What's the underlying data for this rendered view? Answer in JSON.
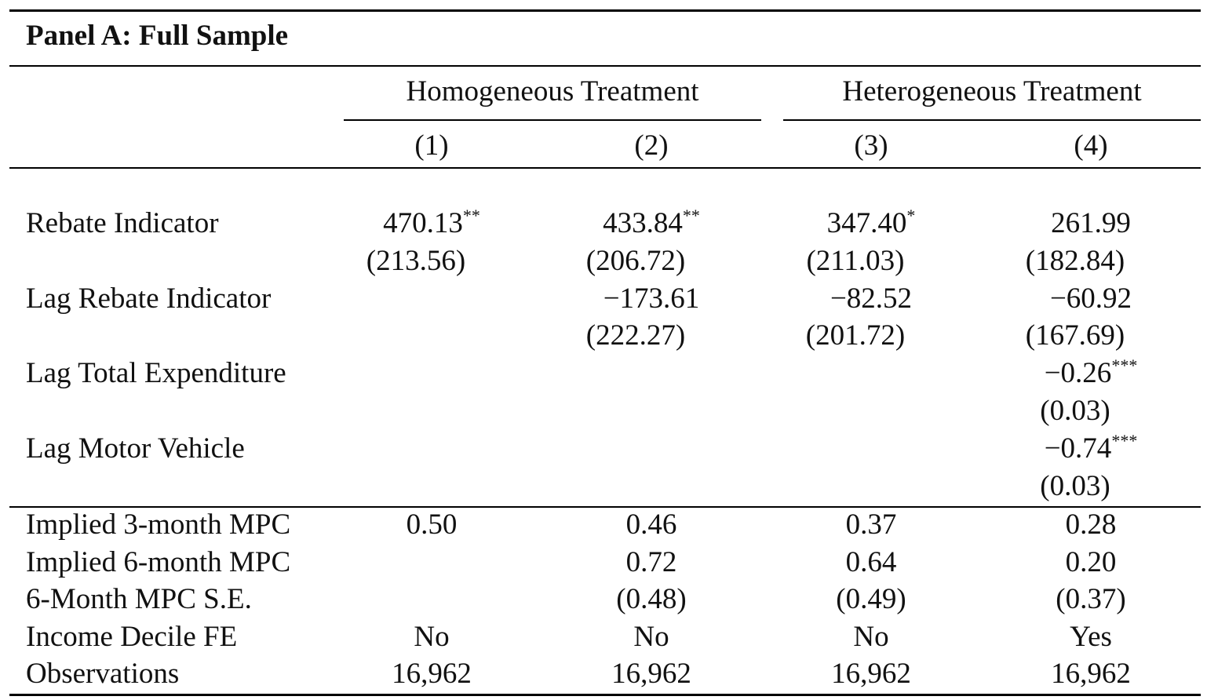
{
  "panel_title": "Panel A: Full Sample",
  "groups": [
    "Homogeneous Treatment",
    "Heterogeneous Treatment"
  ],
  "columns": [
    "(1)",
    "(2)",
    "(3)",
    "(4)"
  ],
  "coef_rows": [
    {
      "label": "Rebate Indicator",
      "coefs": [
        {
          "value": "470.13",
          "stars": "**"
        },
        {
          "value": "433.84",
          "stars": "**"
        },
        {
          "value": "347.40",
          "stars": "*"
        },
        {
          "value": "261.99",
          "stars": ""
        }
      ],
      "ses": [
        "(213.56)",
        "(206.72)",
        "(211.03)",
        "(182.84)"
      ]
    },
    {
      "label": "Lag Rebate Indicator",
      "coefs": [
        {
          "value": "",
          "stars": ""
        },
        {
          "value": "−173.61",
          "stars": ""
        },
        {
          "value": "−82.52",
          "stars": ""
        },
        {
          "value": "−60.92",
          "stars": ""
        }
      ],
      "ses": [
        "",
        "(222.27)",
        "(201.72)",
        "(167.69)"
      ]
    },
    {
      "label": "Lag Total Expenditure",
      "coefs": [
        {
          "value": "",
          "stars": ""
        },
        {
          "value": "",
          "stars": ""
        },
        {
          "value": "",
          "stars": ""
        },
        {
          "value": "−0.26",
          "stars": "***"
        }
      ],
      "ses": [
        "",
        "",
        "",
        "(0.03)"
      ]
    },
    {
      "label": "Lag Motor Vehicle",
      "coefs": [
        {
          "value": "",
          "stars": ""
        },
        {
          "value": "",
          "stars": ""
        },
        {
          "value": "",
          "stars": ""
        },
        {
          "value": "−0.74",
          "stars": "***"
        }
      ],
      "ses": [
        "",
        "",
        "",
        "(0.03)"
      ]
    }
  ],
  "stat_rows": [
    {
      "label": "Implied 3-month MPC",
      "values": [
        "0.50",
        "0.46",
        "0.37",
        "0.28"
      ]
    },
    {
      "label": "Implied 6-month MPC",
      "values": [
        "",
        "0.72",
        "0.64",
        "0.20"
      ]
    },
    {
      "label": "6-Month MPC S.E.",
      "values": [
        "",
        "(0.48)",
        "(0.49)",
        "(0.37)"
      ]
    },
    {
      "label": "Income Decile FE",
      "values": [
        "No",
        "No",
        "No",
        "Yes"
      ]
    },
    {
      "label": "Observations",
      "values": [
        "16,962",
        "16,962",
        "16,962",
        "16,962"
      ]
    }
  ]
}
